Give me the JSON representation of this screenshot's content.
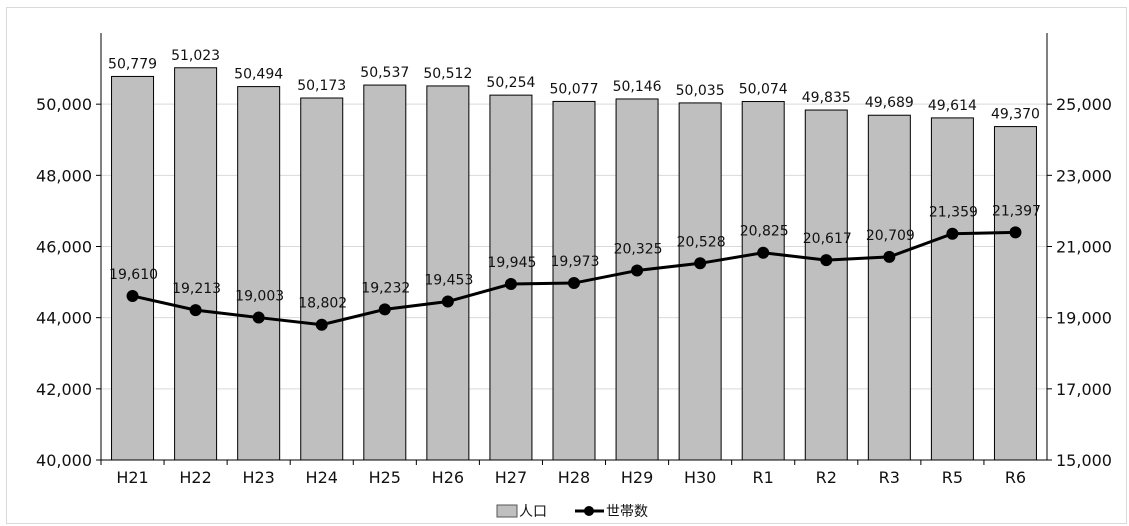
{
  "chart_data": {
    "type": "bar",
    "categories": [
      "H21",
      "H22",
      "H23",
      "H24",
      "H25",
      "H26",
      "H27",
      "H28",
      "H29",
      "H30",
      "R1",
      "R2",
      "R3",
      "R5",
      "R6"
    ],
    "series": [
      {
        "name": "人口",
        "kind": "bar",
        "axis": "left",
        "color": "#bfbfbf",
        "values": [
          50779,
          51023,
          50494,
          50173,
          50537,
          50512,
          50254,
          50077,
          50146,
          50035,
          50074,
          49835,
          49689,
          49614,
          49370
        ],
        "labels": [
          "50,779",
          "51,023",
          "50,494",
          "50,173",
          "50,537",
          "50,512",
          "50,254",
          "50,077",
          "50,146",
          "50,035",
          "50,074",
          "49,835",
          "49,689",
          "49,614",
          "49,370"
        ]
      },
      {
        "name": "世帯数",
        "kind": "line",
        "axis": "right",
        "color": "#000000",
        "values": [
          19610,
          19213,
          19003,
          18802,
          19232,
          19453,
          19945,
          19973,
          20325,
          20528,
          20825,
          20617,
          20709,
          21359,
          21397
        ],
        "labels": [
          "19,610",
          "19,213",
          "19,003",
          "18,802",
          "19,232",
          "19,453",
          "19,945",
          "19,973",
          "20,325",
          "20,528",
          "20,825",
          "20,617",
          "20,709",
          "21,359",
          "21,397"
        ]
      }
    ],
    "y_left": {
      "lim": [
        40000,
        52000
      ],
      "ticks": [
        "40,000",
        "42,000",
        "44,000",
        "46,000",
        "48,000",
        "50,000"
      ]
    },
    "y_right": {
      "lim": [
        15000,
        27000
      ],
      "ticks": [
        "15,000",
        "17,000",
        "19,000",
        "21,000",
        "23,000",
        "25,000"
      ]
    },
    "grid": true,
    "legend": "bottom",
    "title": "",
    "xlabel": "",
    "ylabel": ""
  },
  "legend": {
    "items": [
      {
        "label": "人口",
        "icon": "gray-bar-swatch"
      },
      {
        "label": "世帯数",
        "icon": "line-with-circle-marker"
      }
    ]
  }
}
